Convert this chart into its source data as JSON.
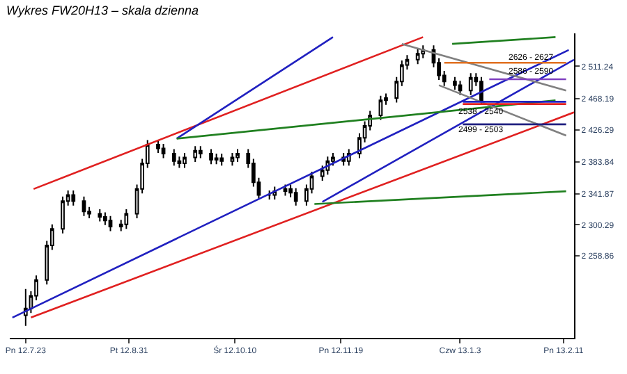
{
  "chart_data": {
    "type": "candlestick",
    "title": "Wykres FW20H13 – skala dzienna",
    "x": [
      "2012-07-23",
      "2012-07-25",
      "2012-07-27",
      "2012-07-31",
      "2012-08-02",
      "2012-08-06",
      "2012-08-08",
      "2012-08-10",
      "2012-08-14",
      "2012-08-16",
      "2012-08-20",
      "2012-08-22",
      "2012-08-24",
      "2012-08-28",
      "2012-08-30",
      "2012-09-03",
      "2012-09-05",
      "2012-09-07",
      "2012-09-11",
      "2012-09-13",
      "2012-09-17",
      "2012-09-19",
      "2012-09-21",
      "2012-09-25",
      "2012-09-27",
      "2012-10-01",
      "2012-10-03",
      "2012-10-05",
      "2012-10-09",
      "2012-10-11",
      "2012-10-15",
      "2012-10-17",
      "2012-10-19",
      "2012-10-23",
      "2012-10-25",
      "2012-10-29",
      "2012-10-31",
      "2012-11-02",
      "2012-11-06",
      "2012-11-08",
      "2012-11-12",
      "2012-11-14",
      "2012-11-16",
      "2012-11-20",
      "2012-11-22",
      "2012-11-26",
      "2012-11-28",
      "2012-11-30",
      "2012-12-04",
      "2012-12-06",
      "2012-12-10",
      "2012-12-12",
      "2012-12-14",
      "2012-12-18",
      "2012-12-20",
      "2012-12-24",
      "2012-12-26",
      "2012-12-28",
      "2013-01-01",
      "2013-01-03",
      "2013-01-07",
      "2013-01-09",
      "2013-01-11"
    ],
    "ohlc": [
      [
        2180,
        2215,
        2166,
        2189
      ],
      [
        2189,
        2212,
        2183,
        2206
      ],
      [
        2206,
        2233,
        2200,
        2227
      ],
      [
        2227,
        2279,
        2221,
        2273
      ],
      [
        2273,
        2301,
        2267,
        2295
      ],
      [
        2295,
        2338,
        2289,
        2332
      ],
      [
        2332,
        2346,
        2326,
        2340
      ],
      [
        2340,
        2346,
        2326,
        2332
      ],
      [
        2332,
        2338,
        2312,
        2318
      ],
      [
        2318,
        2324,
        2309,
        2315
      ],
      [
        2315,
        2321,
        2305,
        2311
      ],
      [
        2311,
        2317,
        2300,
        2306
      ],
      [
        2306,
        2312,
        2292,
        2298
      ],
      [
        2298,
        2307,
        2292,
        2301
      ],
      [
        2301,
        2321,
        2295,
        2315
      ],
      [
        2315,
        2354,
        2309,
        2348
      ],
      [
        2348,
        2388,
        2342,
        2382
      ],
      [
        2382,
        2413,
        2376,
        2407
      ],
      [
        2407,
        2413,
        2396,
        2402
      ],
      [
        2402,
        2408,
        2389,
        2395
      ],
      [
        2395,
        2401,
        2379,
        2385
      ],
      [
        2385,
        2391,
        2376,
        2382
      ],
      [
        2382,
        2396,
        2376,
        2390
      ],
      [
        2390,
        2405,
        2384,
        2399
      ],
      [
        2399,
        2405,
        2389,
        2395
      ],
      [
        2395,
        2401,
        2381,
        2387
      ],
      [
        2387,
        2395,
        2381,
        2389
      ],
      [
        2389,
        2395,
        2379,
        2385
      ],
      [
        2385,
        2396,
        2379,
        2390
      ],
      [
        2390,
        2401,
        2384,
        2395
      ],
      [
        2395,
        2401,
        2376,
        2382
      ],
      [
        2382,
        2388,
        2351,
        2357
      ],
      [
        2357,
        2363,
        2334,
        2340
      ],
      [
        2340,
        2346,
        2334,
        2340
      ],
      [
        2340,
        2351,
        2334,
        2345
      ],
      [
        2345,
        2354,
        2339,
        2348
      ],
      [
        2348,
        2354,
        2337,
        2343
      ],
      [
        2343,
        2349,
        2326,
        2332
      ],
      [
        2332,
        2354,
        2326,
        2348
      ],
      [
        2348,
        2371,
        2342,
        2365
      ],
      [
        2365,
        2379,
        2359,
        2373
      ],
      [
        2373,
        2391,
        2367,
        2385
      ],
      [
        2385,
        2396,
        2379,
        2390
      ],
      [
        2390,
        2396,
        2379,
        2385
      ],
      [
        2385,
        2401,
        2379,
        2395
      ],
      [
        2395,
        2422,
        2389,
        2416
      ],
      [
        2416,
        2438,
        2410,
        2432
      ],
      [
        2432,
        2452,
        2426,
        2446
      ],
      [
        2446,
        2472,
        2440,
        2466
      ],
      [
        2466,
        2475,
        2460,
        2469
      ],
      [
        2469,
        2497,
        2463,
        2491
      ],
      [
        2491,
        2519,
        2485,
        2513
      ],
      [
        2513,
        2526,
        2507,
        2520
      ],
      [
        2520,
        2534,
        2514,
        2528
      ],
      [
        2528,
        2539,
        2522,
        2533
      ],
      [
        2533,
        2539,
        2510,
        2516
      ],
      [
        2516,
        2522,
        2493,
        2499
      ],
      [
        2499,
        2505,
        2485,
        2491
      ],
      [
        2491,
        2497,
        2480,
        2486
      ],
      [
        2486,
        2492,
        2473,
        2479
      ],
      [
        2479,
        2502,
        2473,
        2496
      ],
      [
        2496,
        2502,
        2485,
        2491
      ],
      [
        2491,
        2497,
        2460,
        2466
      ]
    ],
    "series": [
      {
        "type": "line",
        "color": "#e02020",
        "x": [
          "2012-07-25",
          "2013-02-15"
        ],
        "values": [
          2177,
          2450
        ]
      },
      {
        "type": "line",
        "color": "#e02020",
        "x": [
          "2012-07-26",
          "2012-12-20"
        ],
        "values": [
          2348,
          2550
        ]
      },
      {
        "type": "line",
        "color": "#2020c0",
        "x": [
          "2012-07-18",
          "2013-02-13"
        ],
        "values": [
          2177,
          2533
        ]
      },
      {
        "type": "line",
        "color": "#2020c0",
        "x": [
          "2012-09-18",
          "2012-11-16"
        ],
        "values": [
          2415,
          2550
        ]
      },
      {
        "type": "line",
        "color": "#2020c0",
        "x": [
          "2012-11-12",
          "2013-02-15"
        ],
        "values": [
          2331,
          2520
        ]
      },
      {
        "type": "line",
        "color": "#208020",
        "x": [
          "2012-09-18",
          "2013-02-08"
        ],
        "values": [
          2415,
          2466
        ]
      },
      {
        "type": "line",
        "color": "#208020",
        "x": [
          "2012-12-31",
          "2013-02-08"
        ],
        "values": [
          2541,
          2550
        ]
      },
      {
        "type": "line",
        "color": "#208020",
        "x": [
          "2012-11-09",
          "2013-02-12"
        ],
        "values": [
          2328,
          2345
        ]
      },
      {
        "type": "line",
        "color": "#808080",
        "x": [
          "2012-12-12",
          "2013-02-12"
        ],
        "values": [
          2541,
          2479
        ]
      },
      {
        "type": "line",
        "color": "#808080",
        "x": [
          "2012-12-26",
          "2013-02-12"
        ],
        "values": [
          2486,
          2419
        ]
      },
      {
        "type": "line",
        "color": "#e07020",
        "x": [
          "2012-12-28",
          "2013-02-12"
        ],
        "values": [
          2516,
          2516
        ]
      },
      {
        "type": "line",
        "color": "#8040c0",
        "x": [
          "2013-01-14",
          "2013-02-12"
        ],
        "values": [
          2494,
          2494
        ]
      },
      {
        "type": "line",
        "color": "#2020c0",
        "x": [
          "2013-01-04",
          "2013-02-12"
        ],
        "values": [
          2464,
          2464
        ]
      },
      {
        "type": "line",
        "color": "#e02020",
        "x": [
          "2013-01-04",
          "2013-02-12"
        ],
        "values": [
          2461,
          2461
        ]
      },
      {
        "type": "line",
        "color": "#202080",
        "x": [
          "2013-01-04",
          "2013-02-12"
        ],
        "values": [
          2434,
          2434
        ]
      }
    ],
    "annotations": [
      {
        "text": "2626 - 2627",
        "x": "2013-01-30",
        "y": 2523
      },
      {
        "text": "2586 - 2590",
        "x": "2013-01-30",
        "y": 2504
      },
      {
        "text": "2538 - 2540",
        "x": "2013-01-11",
        "y": 2451
      },
      {
        "text": "2499 - 2503",
        "x": "2013-01-11",
        "y": 2427
      }
    ],
    "xlim": [
      "2012-07-17",
      "2013-02-15"
    ],
    "xticks": [
      {
        "value": "2012-07-23",
        "label": "Pn 12.7.23"
      },
      {
        "value": "2012-08-31",
        "label": "Pt 12.8.31"
      },
      {
        "value": "2012-10-10",
        "label": "Śr 12.10.10"
      },
      {
        "value": "2012-11-19",
        "label": "Pn 12.11.19"
      },
      {
        "value": "2013-01-03",
        "label": "Czw 13.1.3"
      },
      {
        "value": "2013-02-11",
        "label": "Pn 13.2.11"
      }
    ],
    "ylim": [
      2150,
      2555
    ],
    "yticks": [
      {
        "value": 2511.24,
        "label": "2 511.24"
      },
      {
        "value": 2468.19,
        "label": "2 468.19"
      },
      {
        "value": 2426.29,
        "label": "2 426.29"
      },
      {
        "value": 2383.84,
        "label": "2 383.84"
      },
      {
        "value": 2341.87,
        "label": "2 341.87"
      },
      {
        "value": 2300.29,
        "label": "2 300.29"
      },
      {
        "value": 2258.86,
        "label": "2 258.86"
      }
    ],
    "tick_labels": "xy"
  }
}
